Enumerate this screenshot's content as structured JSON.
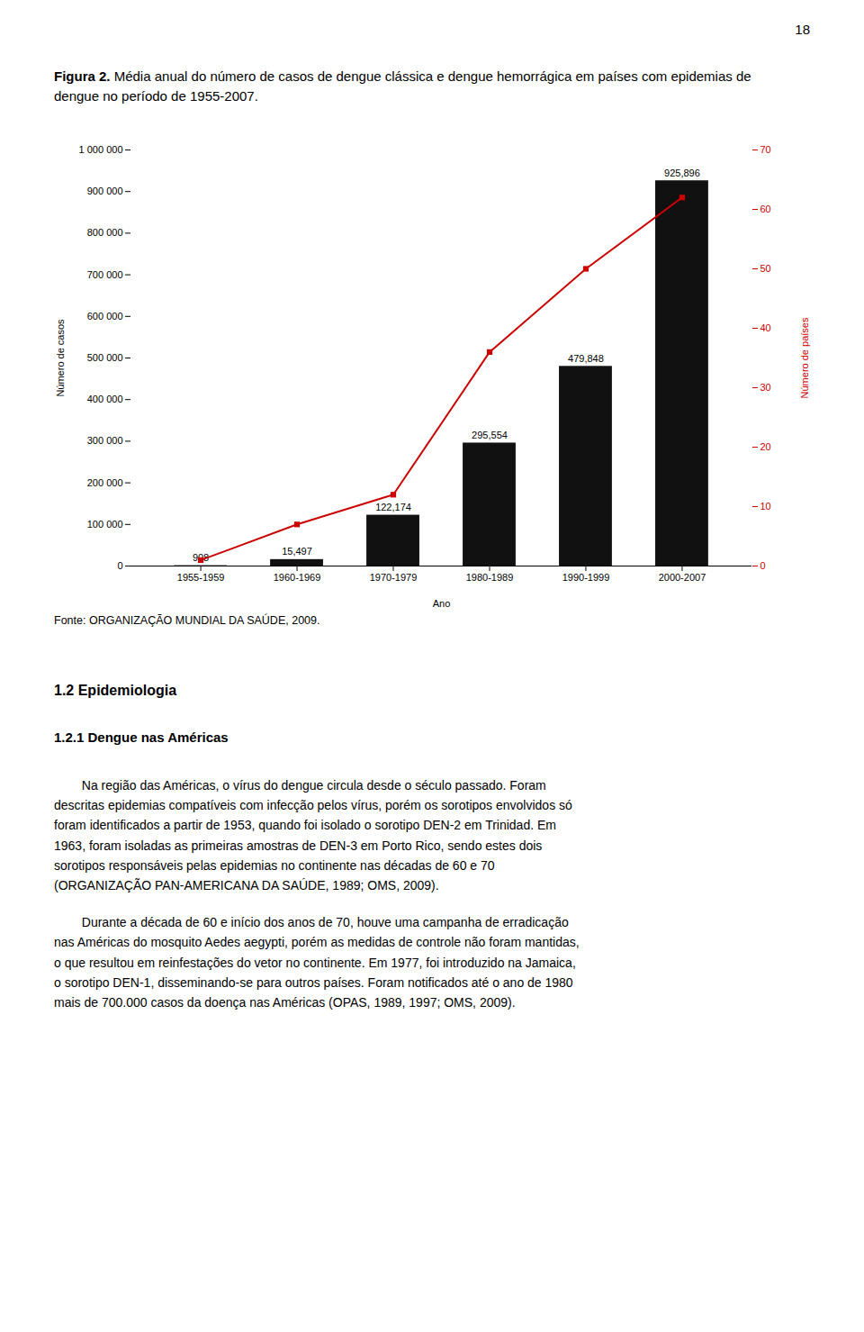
{
  "chart_data": {
    "type": "bar",
    "title": "Figura 2. Média anual do número de casos de dengue clássica e dengue hemorrágica em países com epidemias de dengue no período de 1955-2007.",
    "xlabel": "Ano",
    "ylabel": "Número de casos",
    "y2label": "Número de países",
    "categories": [
      "1955-1959",
      "1960-1969",
      "1970-1979",
      "1980-1989",
      "1990-1999",
      "2000-2007"
    ],
    "series": [
      {
        "type": "bar",
        "color": "#111111",
        "values": [
          908,
          15497,
          122174,
          295554,
          479848,
          925896
        ],
        "value_labels": [
          "908",
          "15,497",
          "122,174",
          "295,554",
          "479,848",
          "925,896"
        ]
      },
      {
        "type": "line",
        "axis": "y2",
        "color": "#cc0000",
        "marker": "square",
        "values": [
          1,
          7,
          12,
          36,
          50,
          62
        ]
      }
    ],
    "ylim": [
      0,
      1000000
    ],
    "yticks": [
      0,
      {
        "value": 100000,
        "label": "100 000"
      },
      {
        "value": 200000,
        "label": "200 000"
      },
      {
        "value": 300000,
        "label": "300 000"
      },
      {
        "value": 400000,
        "label": "400 000"
      },
      {
        "value": 500000,
        "label": "500 000"
      },
      {
        "value": 600000,
        "label": "600 000"
      },
      {
        "value": 700000,
        "label": "700 000"
      },
      {
        "value": 800000,
        "label": "800 000"
      },
      {
        "value": 900000,
        "label": "900 000"
      },
      {
        "value": 1000000,
        "label": "1 000 000"
      }
    ],
    "y2lim": [
      0,
      70
    ],
    "y2ticks": [
      0,
      10,
      20,
      30,
      40,
      50,
      60,
      70
    ],
    "data_labels": true,
    "grid": false,
    "annotations": [
      "18",
      "Fonte: ORGANIZAÇÃO MUNDIAL DA SAÚDE, 2009.",
      "1.2 Epidemiologia",
      "1.2.1 Dengue nas Américas",
      "Na região das Américas, o vírus do dengue circula desde o século passado. Foram\ndescritas epidemias compatíveis com infecção pelos vírus, porém os sorotipos envolvidos só\nforam identificados a partir de 1953, quando foi isolado o sorotipo DEN-2 em Trinidad. Em\n1963, foram isoladas as primeiras amostras de DEN-3 em Porto Rico, sendo estes dois\nsorotipos responsáveis pelas epidemias no continente nas décadas de 60 e 70\n(ORGANIZAÇÃO PAN-AMERICANA DA SAÚDE, 1989; OMS, 2009).",
      "Durante a década de 60 e início dos anos de 70, houve uma campanha de erradicação\nnas Américas do mosquito Aedes aegypti, porém as medidas de controle não foram mantidas,\no que resultou em reinfestações do vetor no continente. Em 1977, foi introduzido na Jamaica,\no sorotipo DEN-1, disseminando-se para outros países. Foram notificados até o ano de 1980\nmais de 700.000 casos da doença nas Américas (OPAS, 1989, 1997; OMS, 2009)."
    ]
  }
}
